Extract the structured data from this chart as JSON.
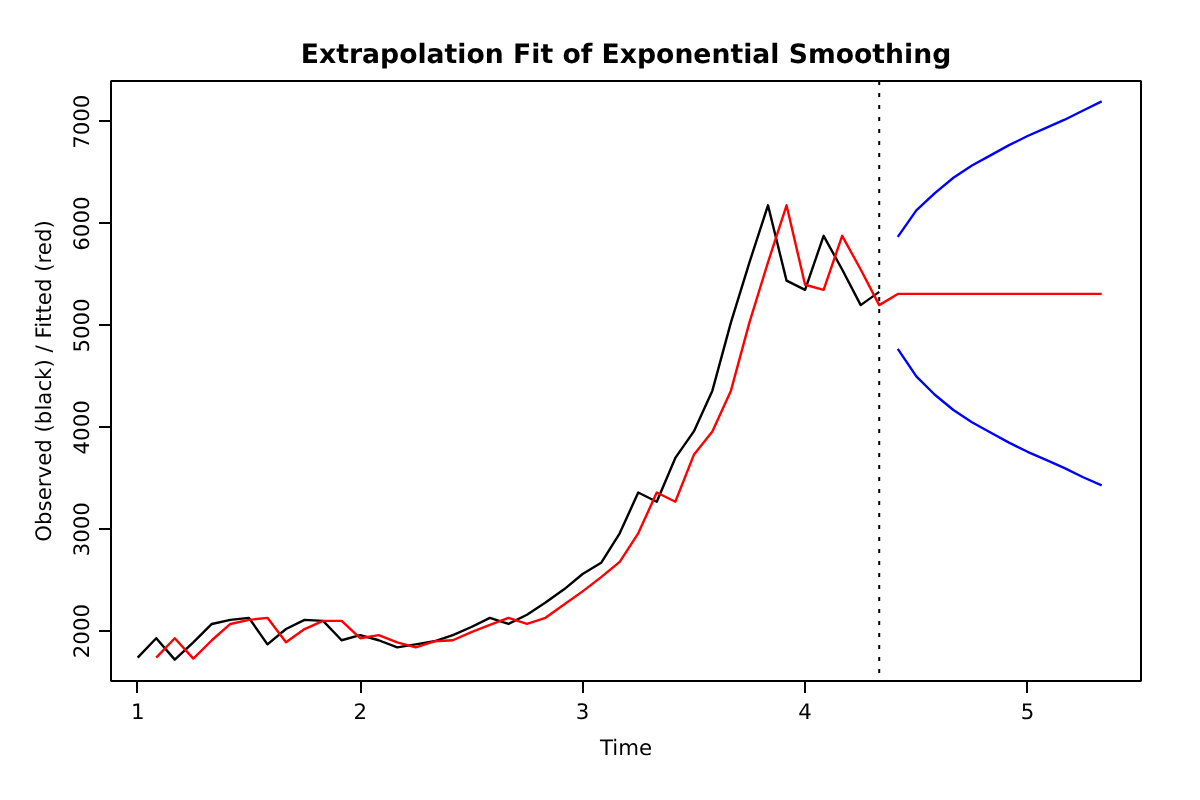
{
  "chart_data": {
    "type": "line",
    "title": "Extrapolation Fit of Exponential Smoothing",
    "xlabel": "Time",
    "ylabel": "Observed (black) / Fitted (red)",
    "xlim": [
      0.88,
      5.51
    ],
    "xticks": [
      1,
      2,
      3,
      4,
      5
    ],
    "ylim": [
      1510,
      7400
    ],
    "yticks": [
      2000,
      3000,
      4000,
      5000,
      6000,
      7000
    ],
    "grid": false,
    "marker": "none",
    "line_style": "solid",
    "ref_lines": [
      {
        "axis": "x",
        "value": 4.3333,
        "label": null,
        "color": "#000000",
        "line_style": "dotted"
      }
    ],
    "series": [
      {
        "color": "#000000",
        "x": [
          1.0,
          1.0833,
          1.1667,
          1.25,
          1.3333,
          1.4167,
          1.5,
          1.5833,
          1.6667,
          1.75,
          1.8333,
          1.9167,
          2.0,
          2.0833,
          2.1667,
          2.25,
          2.3333,
          2.4167,
          2.5,
          2.5833,
          2.6667,
          2.75,
          2.8333,
          2.9167,
          3.0,
          3.0833,
          3.1667,
          3.25,
          3.3333,
          3.4167,
          3.5,
          3.5833,
          3.6667,
          3.75,
          3.8333,
          3.9167,
          4.0,
          4.0833,
          4.1667,
          4.25,
          4.3333
        ],
        "values": [
          1740,
          1930,
          1720,
          1890,
          2070,
          2110,
          2130,
          1870,
          2020,
          2110,
          2100,
          1910,
          1960,
          1910,
          1840,
          1870,
          1900,
          1960,
          2040,
          2130,
          2070,
          2160,
          2280,
          2410,
          2560,
          2670,
          2960,
          3360,
          3270,
          3700,
          3960,
          4360,
          5030,
          5620,
          6180,
          5440,
          5350,
          5880,
          5550,
          5200,
          5330
        ]
      },
      {
        "color": "#ff0000",
        "x": [
          1.0833,
          1.1667,
          1.25,
          1.3333,
          1.4167,
          1.5,
          1.5833,
          1.6667,
          1.75,
          1.8333,
          1.9167,
          2.0,
          2.0833,
          2.1667,
          2.25,
          2.3333,
          2.4167,
          2.5,
          2.5833,
          2.6667,
          2.75,
          2.8333,
          2.9167,
          3.0,
          3.0833,
          3.1667,
          3.25,
          3.3333,
          3.4167,
          3.5,
          3.5833,
          3.6667,
          3.75,
          3.8333,
          3.9167,
          4.0,
          4.0833,
          4.1667,
          4.25,
          4.3333,
          4.4167,
          4.5,
          4.5833,
          4.6667,
          4.75,
          4.8333,
          4.9167,
          5.0,
          5.0833,
          5.1667,
          5.25,
          5.3333
        ],
        "values": [
          1740,
          1930,
          1730,
          1910,
          2070,
          2110,
          2130,
          1890,
          2020,
          2100,
          2100,
          1930,
          1960,
          1890,
          1840,
          1900,
          1910,
          1990,
          2060,
          2130,
          2070,
          2130,
          2260,
          2390,
          2530,
          2680,
          2960,
          3360,
          3270,
          3730,
          3960,
          4360,
          5030,
          5620,
          6180,
          5400,
          5350,
          5880,
          5550,
          5200,
          5310,
          5310,
          5310,
          5310,
          5310,
          5310,
          5310,
          5310,
          5310,
          5310,
          5310,
          5310
        ]
      },
      {
        "color": "#0000ff",
        "x": [
          4.4167,
          4.5,
          4.5833,
          4.6667,
          4.75,
          4.8333,
          4.9167,
          5.0,
          5.0833,
          5.1667,
          5.25,
          5.3333
        ],
        "values": [
          5870,
          6130,
          6300,
          6450,
          6570,
          6670,
          6770,
          6860,
          6940,
          7020,
          7110,
          7200
        ]
      },
      {
        "color": "#0000ff",
        "x": [
          4.4167,
          4.5,
          4.5833,
          4.6667,
          4.75,
          4.8333,
          4.9167,
          5.0,
          5.0833,
          5.1667,
          5.25,
          5.3333
        ],
        "values": [
          4770,
          4500,
          4320,
          4170,
          4050,
          3950,
          3850,
          3760,
          3680,
          3600,
          3510,
          3430
        ]
      }
    ]
  }
}
